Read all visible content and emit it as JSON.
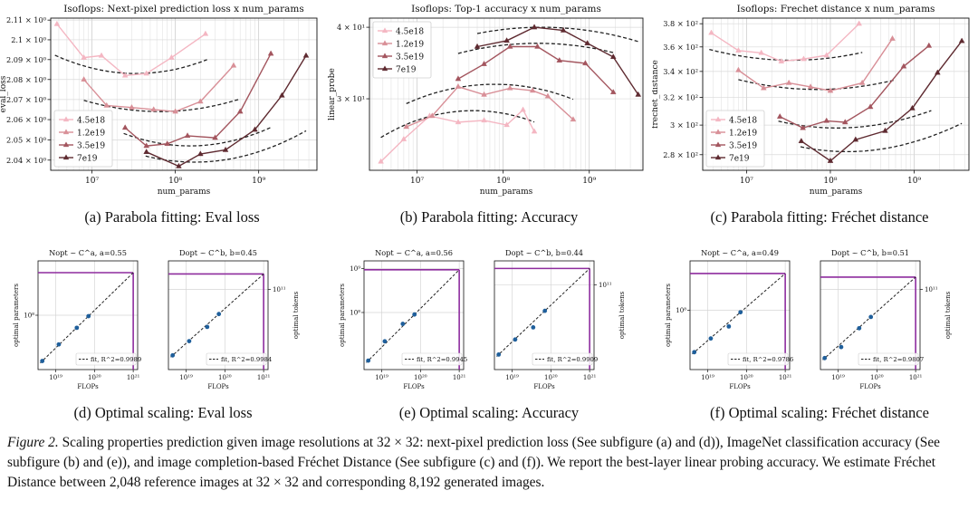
{
  "colors": {
    "s1": "#f4b6c2",
    "s2": "#d88f97",
    "s3": "#a3555e",
    "s4": "#5e2a30",
    "fit": "#222222",
    "dot": "#1f5f9b",
    "budget": "#8e2c9e"
  },
  "top_legend": [
    "4.5e18",
    "1.2e19",
    "3.5e19",
    "7e19"
  ],
  "captions": {
    "a": "(a) Parabola fitting: Eval loss",
    "b": "(b) Parabola fitting: Accuracy",
    "c": "(c) Parabola fitting: Fréchet distance",
    "d": "(d) Optimal scaling: Eval loss",
    "e": "(e) Optimal scaling: Accuracy",
    "f": "(f) Optimal scaling: Fréchet distance"
  },
  "figure_caption": {
    "label": "Figure 2.",
    "text": " Scaling properties prediction given image resolutions at 32 × 32: next-pixel prediction loss (See subfigure (a) and (d)), ImageNet classification accuracy (See subfigure (b) and (e)), and image completion-based Fréchet Distance (See subfigure (c) and (f)). We report the best-layer linear probing accuracy. We estimate Fréchet Distance between 2,048 reference images at 32 × 32 and corresponding 8,192 generated images."
  },
  "chart_data": [
    {
      "id": "a",
      "type": "line",
      "title": "Isoflops: Next-pixel prediction loss x num_params",
      "xlabel": "num_params",
      "ylabel": "eval_loss",
      "xscale": "log",
      "yscale": "log",
      "xlim": [
        3200000.0,
        5000000000.0
      ],
      "ylim": [
        2.035,
        2.111
      ],
      "xticks": [
        {
          "v": 10000000.0,
          "label": "10⁷"
        },
        {
          "v": 100000000.0,
          "label": "10⁸"
        },
        {
          "v": 1000000000.0,
          "label": "10⁹"
        }
      ],
      "yticks": [
        {
          "v": 2.04,
          "label": "2.04 × 10⁰"
        },
        {
          "v": 2.05,
          "label": "2.05 × 10⁰"
        },
        {
          "v": 2.06,
          "label": "2.06 × 10⁰"
        },
        {
          "v": 2.07,
          "label": "2.07 × 10⁰"
        },
        {
          "v": 2.08,
          "label": "2.08 × 10⁰"
        },
        {
          "v": 2.09,
          "label": "2.09 × 10⁰"
        },
        {
          "v": 2.1,
          "label": "2.1 × 10⁰"
        },
        {
          "v": 2.11,
          "label": "2.11 × 10⁰"
        }
      ],
      "legend_position": "lower-left",
      "series": [
        {
          "name": "4.5e18",
          "x": [
            3800000.0,
            8000000.0,
            13000000.0,
            25000000.0,
            45000000.0,
            90000000.0,
            230000000.0
          ],
          "y": [
            2.108,
            2.091,
            2.092,
            2.082,
            2.083,
            2.091,
            2.103
          ],
          "fit": {
            "xmin": 3600000.0,
            "xmax": 240000000.0,
            "vertex_x": 34000000.0,
            "vertex_y": 2.083,
            "a": 0.0323
          }
        },
        {
          "name": "1.2e19",
          "x": [
            8000000.0,
            15000000.0,
            30000000.0,
            55000000.0,
            100000000.0,
            200000000.0,
            500000000.0
          ],
          "y": [
            2.08,
            2.067,
            2.066,
            2.065,
            2.064,
            2.069,
            2.087
          ],
          "fit": {
            "xmin": 8000000.0,
            "xmax": 600000000.0,
            "vertex_x": 65000000.0,
            "vertex_y": 2.064,
            "a": 0.0226
          }
        },
        {
          "name": "3.5e19",
          "x": [
            25000000.0,
            45000000.0,
            80000000.0,
            140000000.0,
            300000000.0,
            600000000.0,
            1400000000.0
          ],
          "y": [
            2.056,
            2.047,
            2.048,
            2.052,
            2.051,
            2.064,
            2.093
          ],
          "fit": {
            "xmin": 24000000.0,
            "xmax": 1400000000.0,
            "vertex_x": 150000000.0,
            "vertex_y": 2.047,
            "a": 0.0324
          }
        },
        {
          "name": "7e19",
          "x": [
            45000000.0,
            110000000.0,
            200000000.0,
            400000000.0,
            900000000.0,
            1900000000.0,
            3700000000.0
          ],
          "y": [
            2.044,
            2.037,
            2.043,
            2.045,
            2.055,
            2.072,
            2.092
          ],
          "fit": {
            "xmin": 44000000.0,
            "xmax": 3700000000.0,
            "vertex_x": 170000000.0,
            "vertex_y": 2.039,
            "a": 0.0288
          }
        }
      ]
    },
    {
      "id": "b",
      "type": "line",
      "title": "Isoflops: Top-1 accuracy x num_params",
      "xlabel": "num_params",
      "ylabel": "linear_probe",
      "xscale": "log",
      "yscale": "log",
      "xlim": [
        2800000.0,
        4200000000.0
      ],
      "ylim": [
        22.5,
        41.5
      ],
      "xticks": [
        {
          "v": 10000000.0,
          "label": "10⁷"
        },
        {
          "v": 100000000.0,
          "label": "10⁸"
        },
        {
          "v": 1000000000.0,
          "label": "10⁹"
        }
      ],
      "yticks": [
        {
          "v": 30,
          "label": "3 × 10¹"
        },
        {
          "v": 40,
          "label": "4 × 10¹"
        }
      ],
      "legend_position": "upper-left",
      "series": [
        {
          "name": "4.5e18",
          "x": [
            3800000.0,
            7000000.0,
            14000000.0,
            30000000.0,
            60000000.0,
            110000000.0,
            170000000.0,
            230000000.0
          ],
          "y": [
            23.3,
            25.5,
            28.0,
            27.3,
            27.5,
            27.0,
            28.7,
            26.3
          ],
          "fit": {
            "xmin": 3800000.0,
            "xmax": 230000000.0,
            "vertex_x": 45000000.0,
            "vertex_y": 28.6,
            "a": 0.0848
          }
        },
        {
          "name": "1.2e19",
          "x": [
            7500000.0,
            15000000.0,
            30000000.0,
            60000000.0,
            120000000.0,
            220000000.0,
            330000000.0,
            650000000.0
          ],
          "y": [
            26.8,
            28.0,
            31.5,
            30.5,
            31.3,
            31.0,
            30.3,
            27.6
          ],
          "fit": {
            "xmin": 7500000.0,
            "xmax": 650000000.0,
            "vertex_x": 80000000.0,
            "vertex_y": 31.8,
            "a": 0.0752
          }
        },
        {
          "name": "3.5e19",
          "x": [
            30000000.0,
            60000000.0,
            120000000.0,
            250000000.0,
            450000000.0,
            900000000.0,
            1900000000.0
          ],
          "y": [
            32.5,
            34.5,
            37.0,
            37.0,
            35.0,
            34.6,
            30.8
          ],
          "fit": {
            "xmin": 30000000.0,
            "xmax": 2000000000.0,
            "vertex_x": 250000000.0,
            "vertex_y": 37.5,
            "a": 0.0592
          }
        },
        {
          "name": "7e19",
          "x": [
            50000000.0,
            110000000.0,
            230000000.0,
            500000000.0,
            950000000.0,
            1900000000.0,
            3700000000.0
          ],
          "y": [
            37.0,
            37.9,
            40.0,
            39.5,
            37.5,
            35.5,
            30.5
          ],
          "fit": {
            "xmin": 50000000.0,
            "xmax": 3700000000.0,
            "vertex_x": 280000000.0,
            "vertex_y": 40.0,
            "a": 0.0595
          }
        }
      ]
    },
    {
      "id": "c",
      "type": "line",
      "title": "Isoflops: Frechet distance x num_params",
      "xlabel": "num_params",
      "ylabel": "frechet_distance",
      "xscale": "log",
      "yscale": "log",
      "xlim": [
        3000000.0,
        4500000000.0
      ],
      "ylim": [
        270,
        385
      ],
      "xticks": [
        {
          "v": 10000000.0,
          "label": "10⁷"
        },
        {
          "v": 100000000.0,
          "label": "10⁸"
        },
        {
          "v": 1000000000.0,
          "label": "10⁹"
        }
      ],
      "yticks": [
        {
          "v": 280,
          "label": "2.8 × 10²"
        },
        {
          "v": 300,
          "label": "3 × 10²"
        },
        {
          "v": 320,
          "label": "3.2 × 10²"
        },
        {
          "v": 340,
          "label": "3.4 × 10²"
        },
        {
          "v": 360,
          "label": "3.6 × 10²"
        },
        {
          "v": 380,
          "label": "3.8 × 10²"
        }
      ],
      "legend_position": "lower-left",
      "series": [
        {
          "name": "4.5e18",
          "x": [
            3800000.0,
            8000000.0,
            15000000.0,
            26000000.0,
            48000000.0,
            90000000.0,
            220000000.0
          ],
          "y": [
            372,
            357,
            355,
            348,
            350,
            353,
            380
          ],
          "fit": {
            "xmin": 3600000.0,
            "xmax": 240000000.0,
            "vertex_x": 35000000.0,
            "vertex_y": 349,
            "a": 0.101
          }
        },
        {
          "name": "1.2e19",
          "x": [
            8000000.0,
            16000000.0,
            32000000.0,
            58000000.0,
            100000000.0,
            240000000.0,
            550000000.0
          ],
          "y": [
            341,
            327,
            331,
            328,
            325,
            331,
            367
          ],
          "fit": {
            "xmin": 8000000.0,
            "xmax": 600000000.0,
            "vertex_x": 70000000.0,
            "vertex_y": 326,
            "a": 0.0947
          }
        },
        {
          "name": "3.5e19",
          "x": [
            25000000.0,
            47000000.0,
            90000000.0,
            150000000.0,
            300000000.0,
            750000000.0,
            1500000000.0
          ],
          "y": [
            306,
            298,
            303,
            302,
            313,
            344,
            361
          ],
          "fit": {
            "xmin": 24000000.0,
            "xmax": 1600000000.0,
            "vertex_x": 120000000.0,
            "vertex_y": 298,
            "a": 0.1083
          }
        },
        {
          "name": "7e19",
          "x": [
            45000000.0,
            100000000.0,
            200000000.0,
            450000000.0,
            950000000.0,
            1900000000.0,
            3700000000.0
          ],
          "y": [
            289,
            276,
            290,
            296,
            312,
            339,
            365
          ],
          "fit": {
            "xmin": 44000000.0,
            "xmax": 3700000000.0,
            "vertex_x": 160000000.0,
            "vertex_y": 282,
            "a": 0.1147
          }
        }
      ]
    },
    {
      "id": "d",
      "type": "scatter",
      "subplots": [
        {
          "title": "Nopt ~ C^a, a=0.55",
          "xlabel": "FLOPs",
          "ylabel": "optimal parameters",
          "ylabel_side": "left",
          "xscale": "log",
          "yscale": "log",
          "xlim": [
            3.5e+18,
            1.3e+21
          ],
          "ylim": [
            5000000.0,
            2000000000.0
          ],
          "xticks": [
            {
              "v": 1e+19,
              "label": "10¹⁹"
            },
            {
              "v": 1e+20,
              "label": "10²⁰"
            },
            {
              "v": 1e+21,
              "label": "10²¹"
            }
          ],
          "yticks": [
            {
              "v": 100000000.0,
              "label": "10⁸"
            }
          ],
          "points": {
            "x": [
              4.5e+18,
              1.2e+19,
              3.5e+19,
              7e+19
            ],
            "y": [
              8000000.0,
              20000000.0,
              50000000.0,
              95000000.0
            ]
          },
          "fit_line": {
            "x": [
              4e+18,
              1e+21
            ]
          },
          "budget_x": 1e+21,
          "legend": "fit, R^2=0.9989"
        },
        {
          "title": "Dopt ~ C^b, b=0.45",
          "xlabel": "FLOPs",
          "ylabel": "optimal tokens",
          "ylabel_side": "right",
          "xscale": "log",
          "yscale": "log",
          "xlim": [
            3.5e+18,
            1.3e+21
          ],
          "ylim": [
            2000000000.0,
            400000000000.0
          ],
          "xticks": [
            {
              "v": 1e+19,
              "label": "10¹⁹"
            },
            {
              "v": 1e+20,
              "label": "10²⁰"
            },
            {
              "v": 1e+21,
              "label": "10²¹"
            }
          ],
          "yticks": [
            {
              "v": 100000000000.0,
              "label": "10¹¹"
            }
          ],
          "points": {
            "x": [
              4.5e+18,
              1.2e+19,
              3.5e+19,
              7e+19
            ],
            "y": [
              4000000000.0,
              8000000000.0,
              16000000000.0,
              30000000000.0
            ]
          },
          "fit_line": {
            "x": [
              4e+18,
              1e+21
            ]
          },
          "budget_x": 1e+21,
          "legend": "fit, R^2=0.9984"
        }
      ]
    },
    {
      "id": "e",
      "type": "scatter",
      "subplots": [
        {
          "title": "Nopt ~ C^a, a=0.56",
          "xlabel": "FLOPs",
          "ylabel": "optimal parameters",
          "ylabel_side": "left",
          "xscale": "log",
          "yscale": "log",
          "xlim": [
            3.5e+18,
            1.3e+21
          ],
          "ylim": [
            5000000.0,
            1500000000.0
          ],
          "xticks": [
            {
              "v": 1e+19,
              "label": "10¹⁹"
            },
            {
              "v": 1e+20,
              "label": "10²⁰"
            },
            {
              "v": 1e+21,
              "label": "10²¹"
            }
          ],
          "yticks": [
            {
              "v": 100000000.0,
              "label": "10⁸"
            },
            {
              "v": 1000000000.0,
              "label": "10⁹"
            }
          ],
          "points": {
            "x": [
              4.5e+18,
              1.2e+19,
              3.5e+19,
              7e+19
            ],
            "y": [
              8000000.0,
              22000000.0,
              55000000.0,
              90000000.0
            ]
          },
          "fit_line": {
            "x": [
              4e+18,
              1e+21
            ]
          },
          "budget_x": 1e+21,
          "legend": "fit, R^2=0.9945"
        },
        {
          "title": "Dopt ~ C^b, b=0.44",
          "xlabel": "FLOPs",
          "ylabel": "optimal tokens",
          "ylabel_side": "right",
          "xscale": "log",
          "yscale": "log",
          "xlim": [
            3.5e+18,
            1.3e+21
          ],
          "ylim": [
            2000000000.0,
            300000000000.0
          ],
          "xticks": [
            {
              "v": 1e+19,
              "label": "10¹⁹"
            },
            {
              "v": 1e+20,
              "label": "10²⁰"
            },
            {
              "v": 1e+21,
              "label": "10²¹"
            }
          ],
          "yticks": [
            {
              "v": 100000000000.0,
              "label": "10¹¹"
            }
          ],
          "points": {
            "x": [
              4.5e+18,
              1.2e+19,
              3.5e+19,
              7e+19
            ],
            "y": [
              4000000000.0,
              8000000000.0,
              14000000000.0,
              30000000000.0
            ]
          },
          "fit_line": {
            "x": [
              4e+18,
              1e+21
            ]
          },
          "budget_x": 1e+21,
          "legend": "fit, R^2=0.9909"
        }
      ]
    },
    {
      "id": "f",
      "type": "scatter",
      "subplots": [
        {
          "title": "Nopt ~ C^a, a=0.49",
          "xlabel": "FLOPs",
          "ylabel": "optimal parameters",
          "ylabel_side": "left",
          "xscale": "log",
          "yscale": "log",
          "xlim": [
            3.5e+18,
            1.3e+21
          ],
          "ylim": [
            5000000.0,
            1200000000.0
          ],
          "xticks": [
            {
              "v": 1e+19,
              "label": "10¹⁹"
            },
            {
              "v": 1e+20,
              "label": "10²⁰"
            },
            {
              "v": 1e+21,
              "label": "10²¹"
            }
          ],
          "yticks": [
            {
              "v": 100000000.0,
              "label": "10⁸"
            }
          ],
          "points": {
            "x": [
              4.5e+18,
              1.2e+19,
              3.5e+19,
              7e+19
            ],
            "y": [
              12000000.0,
              24000000.0,
              44000000.0,
              90000000.0
            ]
          },
          "fit_line": {
            "x": [
              4e+18,
              1e+21
            ]
          },
          "budget_x": 1e+21,
          "legend": "fit, R^2=0.9786"
        },
        {
          "title": "Dopt ~ C^b, b=0.51",
          "xlabel": "FLOPs",
          "ylabel": "optimal tokens",
          "ylabel_side": "right",
          "xscale": "log",
          "yscale": "log",
          "xlim": [
            3.5e+18,
            1.3e+21
          ],
          "ylim": [
            2000000000.0,
            400000000000.0
          ],
          "xticks": [
            {
              "v": 1e+19,
              "label": "10¹⁹"
            },
            {
              "v": 1e+20,
              "label": "10²⁰"
            },
            {
              "v": 1e+21,
              "label": "10²¹"
            }
          ],
          "yticks": [
            {
              "v": 100000000000.0,
              "label": "10¹¹"
            }
          ],
          "points": {
            "x": [
              4.5e+18,
              1.2e+19,
              3.5e+19,
              7e+19
            ],
            "y": [
              3500000000.0,
              6000000000.0,
              15000000000.0,
              26000000000.0
            ]
          },
          "fit_line": {
            "x": [
              4e+18,
              1e+21
            ]
          },
          "budget_x": 1e+21,
          "legend": "fit, R^2=0.9807"
        }
      ]
    }
  ]
}
